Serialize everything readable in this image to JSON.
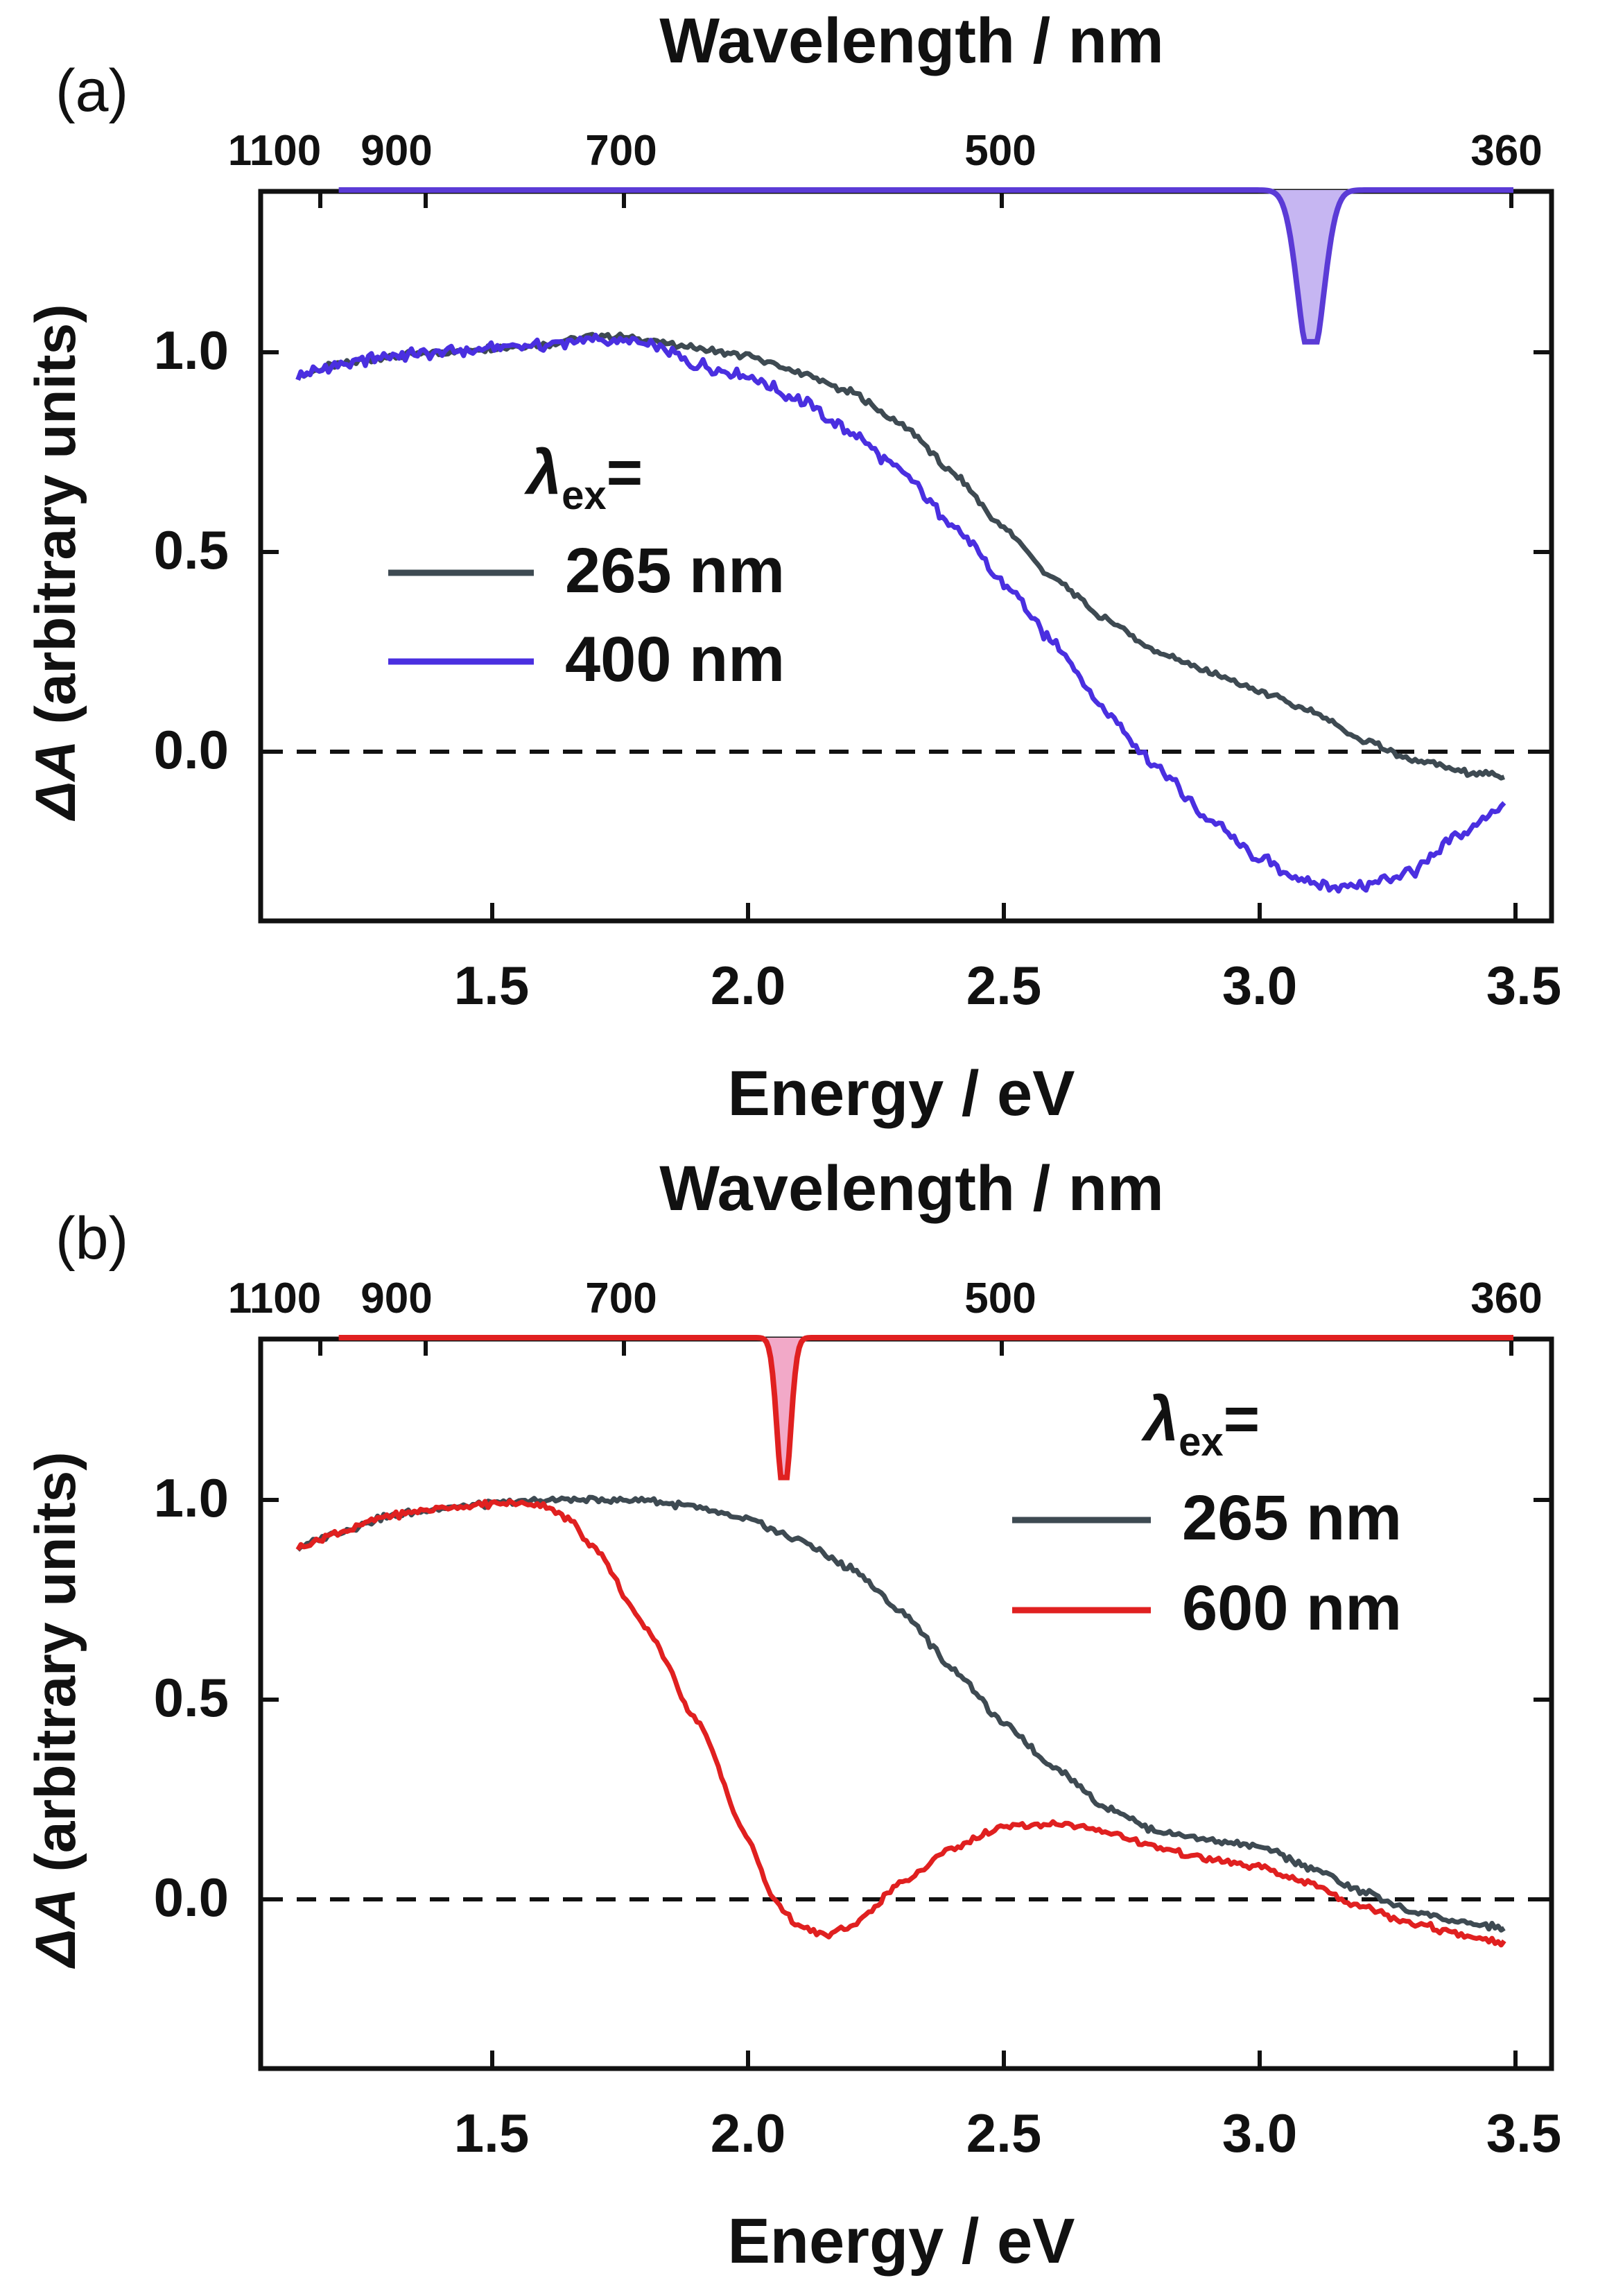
{
  "chart_data": [
    {
      "type": "line",
      "panel_label": "(a)",
      "xlabel": "Energy / eV",
      "ylabel_symbol": "ΔA",
      "ylabel_rest": " (arbitrary units)",
      "top_axis_label": "Wavelength / nm",
      "top_ticks": [
        {
          "label": "1100",
          "value": 1100
        },
        {
          "label": "900",
          "value": 900
        },
        {
          "label": "700",
          "value": 700
        },
        {
          "label": "500",
          "value": 500
        },
        {
          "label": "360",
          "value": 360
        }
      ],
      "xlim": [
        1.1,
        3.5
      ],
      "ylim": [
        -0.42,
        1.4
      ],
      "x_ticks": [
        1.5,
        2.0,
        2.5,
        3.0,
        3.5
      ],
      "x_tick_labels": [
        "1.5",
        "2.0",
        "2.5",
        "3.0",
        "3.5"
      ],
      "y_ticks": [
        0.0,
        0.5,
        1.0
      ],
      "y_tick_labels": [
        "0.0",
        "0.5",
        "1.0"
      ],
      "zero_line": 0.0,
      "legend": {
        "title_symbol": "λ",
        "title_sub": "ex",
        "title_suffix": "=",
        "location": "middle-left"
      },
      "excitation_pulse": {
        "center_ev": 3.1,
        "width_ev": 0.035,
        "depth": 0.38,
        "baseline": 1.38,
        "color": "#5b3bd6",
        "fill": "#c6b6f2"
      },
      "series": [
        {
          "name": "265 nm",
          "color": "#3e4a52",
          "x": [
            1.12,
            1.2,
            1.3,
            1.4,
            1.5,
            1.6,
            1.7,
            1.75,
            1.8,
            1.9,
            2.0,
            2.1,
            2.2,
            2.3,
            2.4,
            2.5,
            2.6,
            2.7,
            2.8,
            2.9,
            3.0,
            3.1,
            3.2,
            3.3,
            3.4,
            3.48
          ],
          "y": [
            0.94,
            0.97,
            0.99,
            1.0,
            1.01,
            1.02,
            1.04,
            1.04,
            1.03,
            1.01,
            0.99,
            0.95,
            0.9,
            0.82,
            0.7,
            0.56,
            0.43,
            0.33,
            0.25,
            0.2,
            0.15,
            0.1,
            0.03,
            -0.02,
            -0.05,
            -0.06
          ]
        },
        {
          "name": "400 nm",
          "color": "#4a2fe0",
          "x": [
            1.12,
            1.2,
            1.3,
            1.4,
            1.5,
            1.6,
            1.7,
            1.75,
            1.8,
            1.9,
            2.0,
            2.1,
            2.2,
            2.3,
            2.4,
            2.5,
            2.6,
            2.7,
            2.8,
            2.9,
            3.0,
            3.1,
            3.2,
            3.3,
            3.4,
            3.48
          ],
          "y": [
            0.94,
            0.97,
            0.99,
            1.0,
            1.01,
            1.02,
            1.03,
            1.03,
            1.02,
            0.97,
            0.94,
            0.88,
            0.8,
            0.7,
            0.57,
            0.42,
            0.27,
            0.1,
            -0.04,
            -0.17,
            -0.27,
            -0.33,
            -0.34,
            -0.3,
            -0.2,
            -0.13
          ]
        }
      ]
    },
    {
      "type": "line",
      "panel_label": "(b)",
      "xlabel": "Energy / eV",
      "ylabel_symbol": "ΔA",
      "ylabel_rest": " (arbitrary units)",
      "top_axis_label": "Wavelength / nm",
      "top_ticks": [
        {
          "label": "1100",
          "value": 1100
        },
        {
          "label": "900",
          "value": 900
        },
        {
          "label": "700",
          "value": 700
        },
        {
          "label": "500",
          "value": 500
        },
        {
          "label": "360",
          "value": 360
        }
      ],
      "xlim": [
        1.1,
        3.5
      ],
      "ylim": [
        -0.42,
        1.4
      ],
      "x_ticks": [
        1.5,
        2.0,
        2.5,
        3.0,
        3.5
      ],
      "x_tick_labels": [
        "1.5",
        "2.0",
        "2.5",
        "3.0",
        "3.5"
      ],
      "y_ticks": [
        0.0,
        0.5,
        1.0
      ],
      "y_tick_labels": [
        "0.0",
        "0.5",
        "1.0"
      ],
      "zero_line": 0.0,
      "legend": {
        "title_symbol": "λ",
        "title_sub": "ex",
        "title_suffix": "=",
        "location": "top-right"
      },
      "excitation_pulse": {
        "center_ev": 2.07,
        "width_ev": 0.018,
        "depth": 0.35,
        "baseline": 1.38,
        "color": "#e02020",
        "fill": "#f2a9c8"
      },
      "series": [
        {
          "name": "265 nm",
          "color": "#3e4a52",
          "x": [
            1.12,
            1.2,
            1.3,
            1.4,
            1.5,
            1.6,
            1.7,
            1.8,
            1.9,
            2.0,
            2.1,
            2.2,
            2.3,
            2.4,
            2.5,
            2.6,
            2.7,
            2.8,
            2.9,
            3.0,
            3.1,
            3.2,
            3.3,
            3.4,
            3.48
          ],
          "y": [
            0.88,
            0.92,
            0.96,
            0.98,
            0.99,
            1.0,
            1.0,
            1.0,
            0.98,
            0.95,
            0.9,
            0.83,
            0.72,
            0.58,
            0.44,
            0.33,
            0.23,
            0.17,
            0.15,
            0.13,
            0.08,
            0.02,
            -0.03,
            -0.06,
            -0.07
          ]
        },
        {
          "name": "600 nm",
          "color": "#e02020",
          "x": [
            1.12,
            1.2,
            1.3,
            1.4,
            1.5,
            1.6,
            1.65,
            1.7,
            1.8,
            1.9,
            2.0,
            2.05,
            2.1,
            2.15,
            2.2,
            2.3,
            2.4,
            2.5,
            2.6,
            2.7,
            2.8,
            2.9,
            3.0,
            3.1,
            3.2,
            3.3,
            3.4,
            3.48
          ],
          "y": [
            0.88,
            0.92,
            0.96,
            0.98,
            0.99,
            0.99,
            0.95,
            0.88,
            0.68,
            0.45,
            0.15,
            0.0,
            -0.07,
            -0.09,
            -0.07,
            0.04,
            0.13,
            0.18,
            0.19,
            0.17,
            0.13,
            0.1,
            0.08,
            0.04,
            -0.02,
            -0.06,
            -0.09,
            -0.11
          ]
        }
      ]
    }
  ]
}
